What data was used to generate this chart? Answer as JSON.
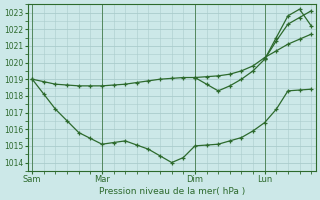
{
  "xlabel": "Pression niveau de la mer( hPa )",
  "background_color": "#cce8e8",
  "grid_color": "#aacccc",
  "line_color": "#2d6a2d",
  "ylim": [
    1013.5,
    1023.5
  ],
  "yticks": [
    1014,
    1015,
    1016,
    1017,
    1018,
    1019,
    1020,
    1021,
    1022,
    1023
  ],
  "xlim": [
    -0.2,
    12.2
  ],
  "xtick_labels": [
    "Sam",
    "Mar",
    "Dim",
    "Lun"
  ],
  "xtick_positions": [
    0,
    3,
    7,
    10
  ],
  "vline_positions": [
    0,
    3,
    7,
    10
  ],
  "line1_x": [
    0,
    0.5,
    1,
    1.5,
    2,
    2.5,
    3,
    3.5,
    4,
    4.5,
    5,
    5.5,
    6,
    6.5,
    7,
    7.5,
    8,
    8.5,
    9,
    9.5,
    10,
    10.5,
    11,
    11.5,
    12
  ],
  "line1_y": [
    1019.0,
    1018.85,
    1018.7,
    1018.65,
    1018.6,
    1018.6,
    1018.6,
    1018.65,
    1018.7,
    1018.8,
    1018.9,
    1019.0,
    1019.05,
    1019.1,
    1019.1,
    1019.15,
    1019.2,
    1019.3,
    1019.5,
    1019.8,
    1020.3,
    1020.7,
    1021.1,
    1021.4,
    1021.7
  ],
  "line2_x": [
    0,
    0.5,
    1,
    1.5,
    2,
    2.5,
    3,
    3.5,
    4,
    4.5,
    5,
    5.5,
    6,
    6.5,
    7,
    7.5,
    8,
    8.5,
    9,
    9.5,
    10,
    10.5,
    11,
    11.5,
    12
  ],
  "line2_y": [
    1019.0,
    1018.1,
    1017.2,
    1016.5,
    1015.8,
    1015.45,
    1015.1,
    1015.2,
    1015.3,
    1015.05,
    1014.8,
    1014.4,
    1014.0,
    1014.3,
    1015.0,
    1015.05,
    1015.1,
    1015.3,
    1015.5,
    1015.9,
    1016.4,
    1017.2,
    1018.3,
    1018.35,
    1018.4
  ],
  "line3_x": [
    7,
    7.5,
    8,
    8.5,
    9,
    9.5,
    10,
    10.5,
    11,
    11.5,
    12
  ],
  "line3_y": [
    1019.1,
    1018.7,
    1018.3,
    1018.6,
    1019.0,
    1019.5,
    1020.2,
    1021.3,
    1022.3,
    1022.7,
    1023.1
  ],
  "line4_x": [
    10,
    10.5,
    11,
    11.5,
    12
  ],
  "line4_y": [
    1020.2,
    1021.5,
    1022.8,
    1023.2,
    1022.2
  ]
}
